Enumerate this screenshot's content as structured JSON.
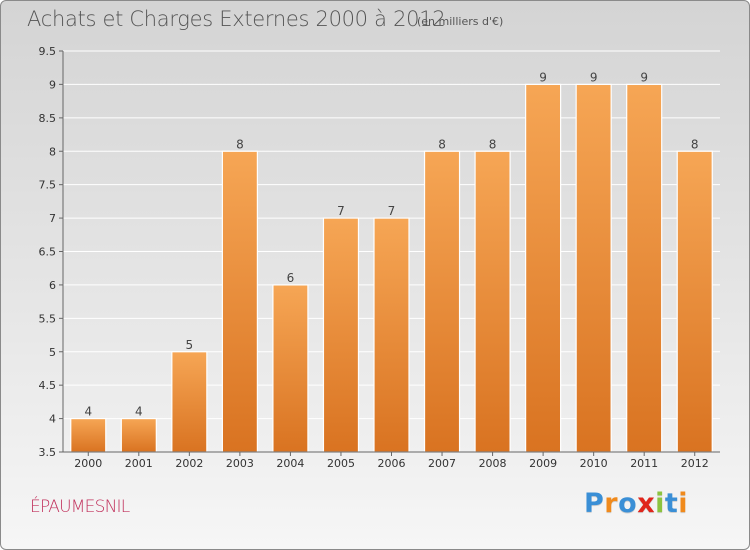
{
  "chart_data": {
    "type": "bar",
    "title": "Achats et Charges Externes 2000 à 2012",
    "subtitle": "(en milliers d'€)",
    "categories": [
      "2000",
      "2001",
      "2002",
      "2003",
      "2004",
      "2005",
      "2006",
      "2007",
      "2008",
      "2009",
      "2010",
      "2011",
      "2012"
    ],
    "values": [
      4,
      4,
      5,
      8,
      6,
      7,
      7,
      8,
      8,
      9,
      9,
      9,
      8
    ],
    "data_labels": [
      "4",
      "4",
      "5",
      "8",
      "6",
      "7",
      "7",
      "8",
      "8",
      "9",
      "9",
      "9",
      "8"
    ],
    "yticks": [
      "3.5",
      "4",
      "4.5",
      "5",
      "5.5",
      "6",
      "6.5",
      "7",
      "7.5",
      "8",
      "8.5",
      "9",
      "9.5"
    ],
    "ylim": [
      3.5,
      9.5
    ],
    "xlabel": "",
    "ylabel": "",
    "grid": true,
    "colors": {
      "bar_top": "#f6a655",
      "bar_bottom": "#d97321",
      "grid": "#ffffff"
    }
  },
  "footer": {
    "commune": "ÉPAUMESNIL",
    "logo_letters": [
      "P",
      "r",
      "o",
      "x",
      "i",
      "t",
      "i"
    ],
    "logo_colors": [
      "#3a8fd6",
      "#f08a1c",
      "#3a8fd6",
      "#e0261c",
      "#8cc33f",
      "#3a8fd6",
      "#f08a1c"
    ]
  }
}
